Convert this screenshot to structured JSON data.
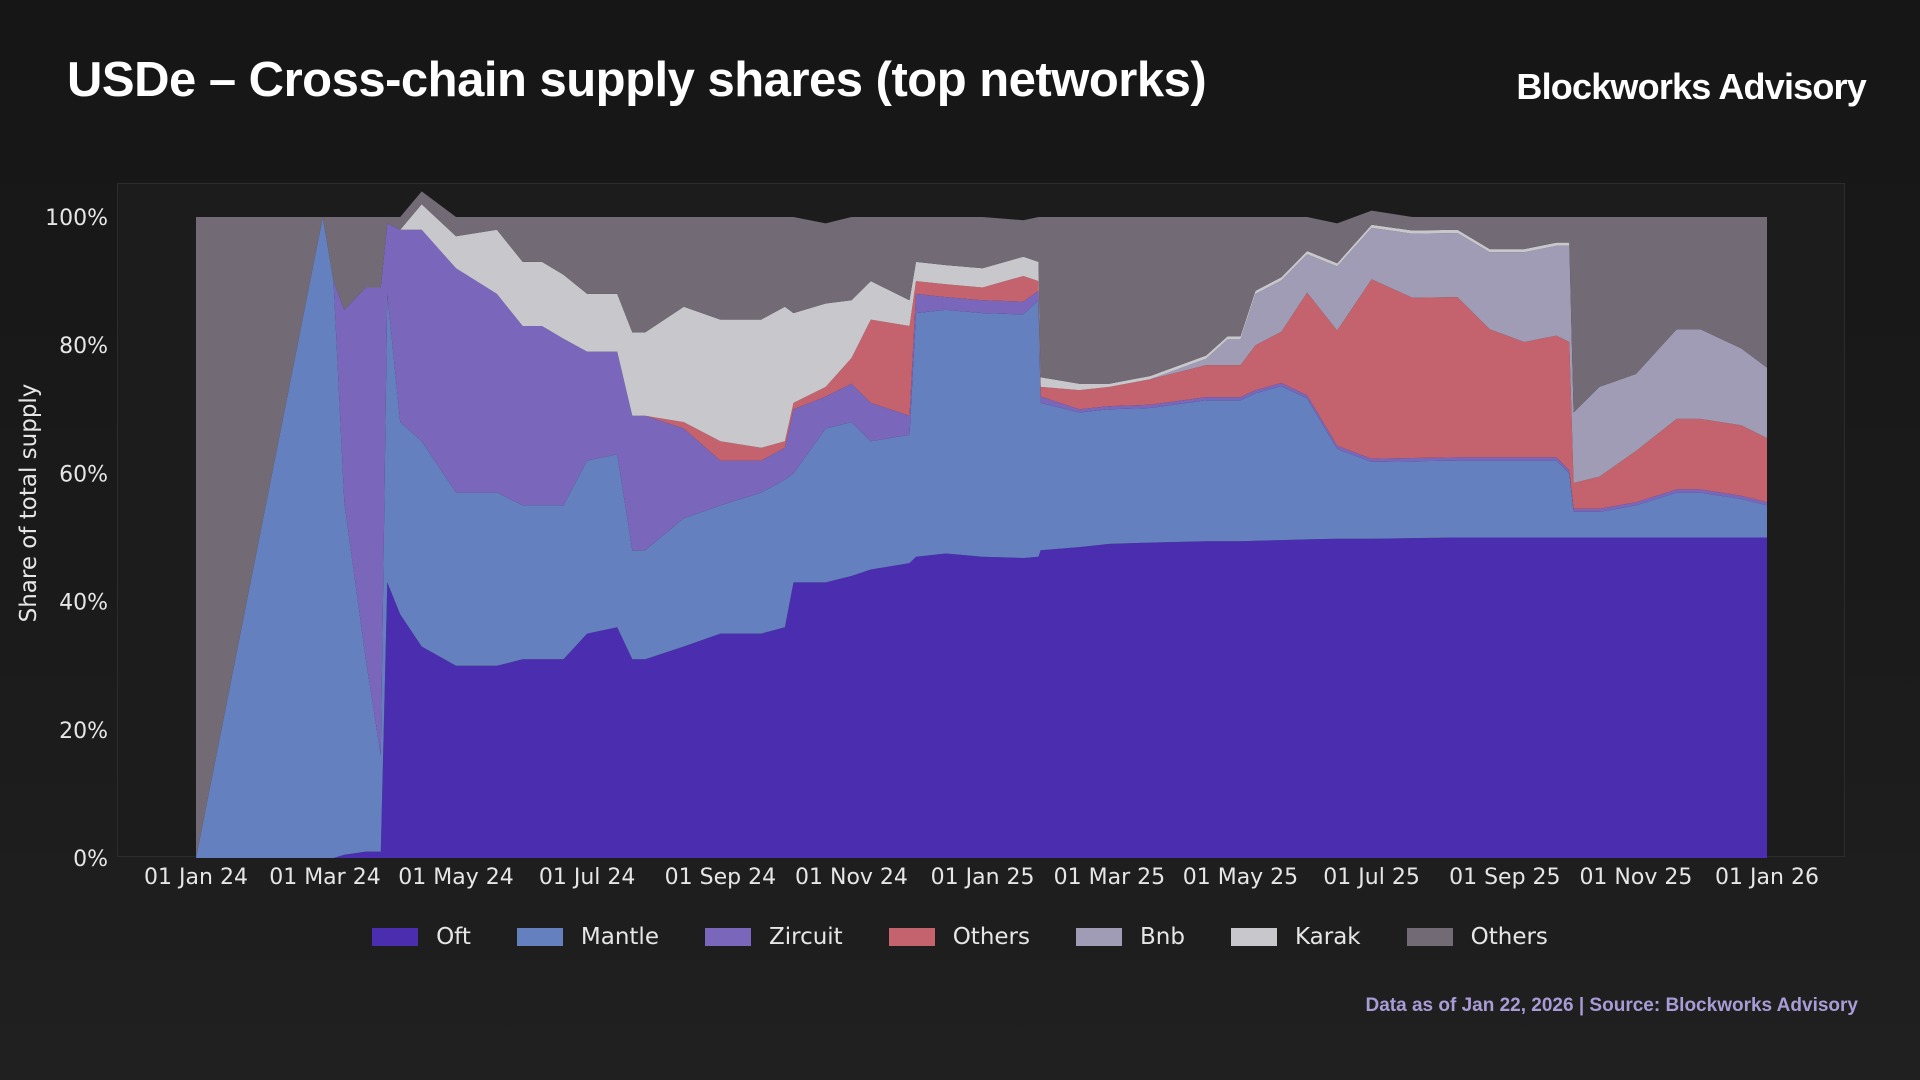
{
  "header": {
    "title": "USDe – Cross-chain supply shares (top networks)",
    "brand": "Blockworks Advisory"
  },
  "footer": {
    "source": "Data as of Jan 22, 2026 | Source: Blockworks Advisory"
  },
  "chart_data": {
    "type": "area",
    "stacked": true,
    "normalized_percent": true,
    "title": "USDe – Cross-chain supply shares (top networks)",
    "ylabel": "Share of total supply",
    "xlabel": "",
    "ylim": [
      0,
      100
    ],
    "xlim": [
      "2024-01-01",
      "2026-01-01"
    ],
    "y_ticks": [
      "0%",
      "20%",
      "40%",
      "60%",
      "80%",
      "100%"
    ],
    "x_ticks": [
      "01 Jan 24",
      "01 Mar 24",
      "01 May 24",
      "01 Jul 24",
      "01 Sep 24",
      "01 Nov 24",
      "01 Jan 25",
      "01 Mar 25",
      "01 May 25",
      "01 Jul 25",
      "01 Sep 25",
      "01 Nov 25",
      "01 Jan 26"
    ],
    "x_tick_dates": [
      "2024-01-01",
      "2024-03-01",
      "2024-05-01",
      "2024-07-01",
      "2024-09-01",
      "2024-11-01",
      "2025-01-01",
      "2025-03-01",
      "2025-05-01",
      "2025-07-01",
      "2025-09-01",
      "2025-11-01",
      "2026-01-01"
    ],
    "grid": false,
    "legend_position": "bottom",
    "x": [
      "2024-01-01",
      "2024-02-29",
      "2024-03-05",
      "2024-03-10",
      "2024-03-20",
      "2024-03-27",
      "2024-03-30",
      "2024-04-05",
      "2024-04-15",
      "2024-05-01",
      "2024-05-20",
      "2024-06-01",
      "2024-06-10",
      "2024-06-20",
      "2024-07-01",
      "2024-07-15",
      "2024-07-22",
      "2024-07-28",
      "2024-08-15",
      "2024-09-01",
      "2024-09-20",
      "2024-10-01",
      "2024-10-05",
      "2024-10-20",
      "2024-11-01",
      "2024-11-10",
      "2024-11-28",
      "2024-12-01",
      "2024-12-15",
      "2025-01-01",
      "2025-01-20",
      "2025-01-27",
      "2025-01-28",
      "2025-02-15",
      "2025-03-01",
      "2025-03-20",
      "2025-04-15",
      "2025-04-25",
      "2025-05-01",
      "2025-05-08",
      "2025-05-20",
      "2025-06-01",
      "2025-06-15",
      "2025-07-01",
      "2025-07-20",
      "2025-08-10",
      "2025-08-25",
      "2025-09-10",
      "2025-09-25",
      "2025-10-01",
      "2025-10-03",
      "2025-10-15",
      "2025-11-01",
      "2025-11-20",
      "2025-12-01",
      "2025-12-20",
      "2026-01-01"
    ],
    "series": [
      {
        "name": "Oft",
        "color": "#4b2db0",
        "values": [
          0,
          0,
          0,
          0.5,
          1,
          1,
          43,
          38,
          33,
          30,
          30,
          31,
          31,
          31,
          35,
          36,
          31,
          31,
          33,
          35,
          35,
          36,
          43,
          43,
          44,
          45,
          46,
          47,
          47.5,
          47,
          46.8,
          47,
          48,
          48.5,
          49,
          49.2,
          49.4,
          49.4,
          49.4,
          49.5,
          49.6,
          49.7,
          49.8,
          49.8,
          49.9,
          50,
          50,
          50,
          50,
          50,
          50,
          50,
          50,
          50,
          50,
          50,
          50
        ]
      },
      {
        "name": "Mantle",
        "color": "#6580bf",
        "values": [
          0,
          100,
          90,
          55,
          30,
          15,
          45,
          30,
          32,
          27,
          27,
          24,
          24,
          24,
          27,
          27,
          17,
          17,
          20,
          20,
          22,
          23,
          17,
          24,
          24,
          20,
          20,
          38,
          38,
          38,
          38,
          40,
          23,
          21,
          21,
          21,
          22,
          22,
          22,
          23,
          24,
          22,
          14,
          12,
          12,
          12,
          12,
          12,
          12,
          10,
          4,
          4,
          5,
          7,
          7,
          6,
          5
        ]
      },
      {
        "name": "Zircuit",
        "color": "#7a66bb",
        "values": [
          0,
          0,
          0,
          30,
          58,
          73,
          11,
          30,
          33,
          35,
          31,
          28,
          28,
          26,
          17,
          16,
          21,
          21,
          14,
          7,
          5,
          5,
          10,
          5,
          6,
          6,
          3,
          3,
          2,
          2,
          2,
          1.5,
          1,
          0.5,
          0.5,
          0.5,
          0.5,
          0.5,
          0.5,
          0.5,
          0.5,
          0.5,
          0.5,
          0.5,
          0.5,
          0.5,
          0.5,
          0.5,
          0.5,
          0.5,
          0.5,
          0.5,
          0.5,
          0.5,
          0.5,
          0.5,
          0.5
        ]
      },
      {
        "name": "Others",
        "color": "#c4636e",
        "values": [
          0,
          0,
          0,
          0,
          0,
          0,
          0,
          0,
          0,
          0,
          0,
          0,
          0,
          0,
          0,
          0,
          0,
          0,
          1,
          3,
          2,
          1,
          1,
          1.5,
          4,
          13,
          14,
          2,
          2,
          2,
          4,
          1.5,
          1.5,
          3,
          3,
          4,
          5,
          5,
          5,
          7,
          8,
          16,
          18,
          28,
          25,
          25,
          20,
          18,
          19,
          20,
          4,
          5,
          8,
          11,
          11,
          11,
          10
        ]
      },
      {
        "name": "Bnb",
        "color": "#a09cb6",
        "values": [
          0,
          0,
          0,
          0,
          0,
          0,
          0,
          0,
          0,
          0,
          0,
          0,
          0,
          0,
          0,
          0,
          0,
          0,
          0,
          0,
          0,
          0,
          0,
          0,
          0,
          0,
          0,
          0,
          0,
          0,
          0,
          0,
          0,
          0,
          0,
          0,
          1,
          4,
          4,
          8,
          8,
          6,
          10,
          8,
          10,
          10,
          12,
          14,
          14,
          15,
          11,
          14,
          12,
          14,
          14,
          12,
          11
        ]
      },
      {
        "name": "Karak",
        "color": "#c8c8cc",
        "values": [
          0,
          0,
          0,
          0,
          0,
          0,
          0,
          0,
          4,
          5,
          10,
          10,
          10,
          10,
          9,
          9,
          13,
          13,
          18,
          19,
          20,
          21,
          14,
          13,
          9,
          6,
          4,
          3,
          3,
          3,
          3,
          3,
          1.5,
          1,
          0.5,
          0.5,
          0.5,
          0.5,
          0.5,
          0.5,
          0.5,
          0.5,
          0.5,
          0.5,
          0.5,
          0.5,
          0.5,
          0.5,
          0.5,
          0.5,
          0,
          0,
          0,
          0,
          0,
          0,
          0
        ]
      },
      {
        "name": "Others",
        "color": "#726b76",
        "values": [
          100,
          0,
          10,
          14.5,
          11,
          11,
          1,
          2,
          2,
          3,
          2,
          7,
          7,
          9,
          12,
          12,
          18,
          18,
          14,
          16,
          16,
          14,
          15,
          12.5,
          13,
          10,
          13,
          7,
          7.5,
          8,
          5.7,
          7,
          25,
          26,
          26,
          24.8,
          21.6,
          18.6,
          18.6,
          11.5,
          9.4,
          5.3,
          6.2,
          2.2,
          2.1,
          2,
          5,
          5,
          4,
          4,
          30.5,
          26.5,
          24.5,
          17.5,
          17.5,
          20.5,
          23.5
        ]
      }
    ]
  }
}
